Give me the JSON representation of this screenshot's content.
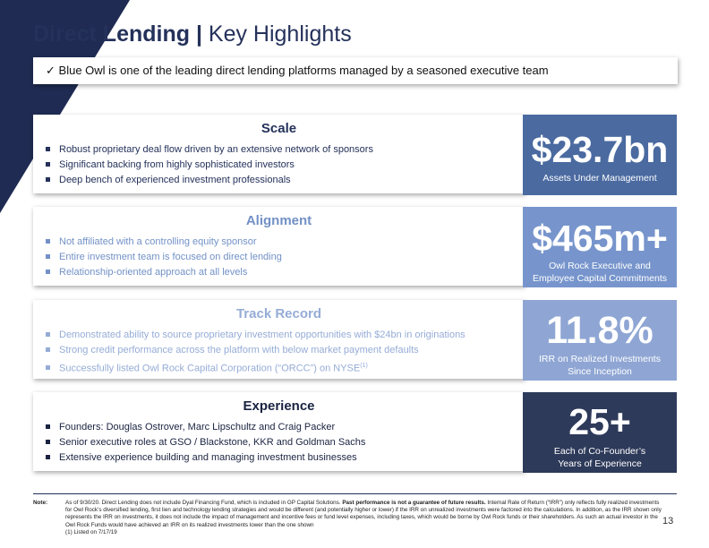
{
  "title": {
    "bold": "Direct Lending |",
    "rest": " Key Highlights"
  },
  "banner": {
    "check": "✓",
    "text": "Blue Owl is one of the leading direct lending platforms managed by a seasoned executive team"
  },
  "sections": [
    {
      "heading": "Scale",
      "color": "#24315a",
      "bullets": [
        "Robust proprietary deal flow driven by an extensive network of sponsors",
        "Significant backing from highly sophisticated investors",
        "Deep bench of experienced investment professionals"
      ],
      "stat": "$23.7bn",
      "caption": [
        "Assets Under Management"
      ],
      "stat_bg": "#4a6aa0"
    },
    {
      "heading": "Alignment",
      "color": "#7291c6",
      "bullets": [
        "Not affiliated with a controlling equity sponsor",
        "Entire investment team is focused on direct lending",
        "Relationship-oriented approach at all levels"
      ],
      "stat": "$465m+",
      "caption": [
        "Owl Rock Executive and",
        "Employee Capital Commitments"
      ],
      "stat_bg": "#7795cc"
    },
    {
      "heading": "Track Record",
      "color": "#95acd6",
      "bullets": [
        "Demonstrated ability to source proprietary investment opportunities with $24bn in originations",
        "Strong credit performance across the platform with below market payment defaults",
        "Successfully listed Owl Rock Capital Corporation (“ORCC”) on NYSE"
      ],
      "footnote_mark": "(1)",
      "stat": "11.8%",
      "caption": [
        "IRR on Realized Investments",
        "Since Inception"
      ],
      "stat_bg": "#8fa6d4"
    },
    {
      "heading": "Experience",
      "color": "#1a2341",
      "bullets": [
        "Founders: Douglas Ostrover, Marc Lipschultz and Craig Packer",
        "Senior executive roles at GSO / Blackstone, KKR and Goldman Sachs",
        "Extensive experience building and managing investment businesses"
      ],
      "stat": "25+",
      "caption": [
        "Each of Co-Founder’s",
        "Years of Experience"
      ],
      "stat_bg": "#2e3a5a"
    }
  ],
  "note": {
    "label": "Note:",
    "text_a": "As of 9/30/20. Direct Lending does not include Dyal Financing Fund, which is included in GP Capital Solutions. ",
    "text_b": "Past performance is not a guarantee of future results.",
    "text_c": " Internal Rate of Return (“IRR”) only reflects fully realized investments for Owl Rock’s diversified lending, first lien and technology lending strategies and would be different (and potentially higher or lower) if the IRR on unrealized investments were factored into the calculations.  In addition, as the IRR shown only represents the IRR on investments, it does not include the impact of management and incentive fees or fund level expenses, including taxes, which would be borne by Owl Rock funds or their shareholders. As such an actual investor in the Owl Rock Funds would have achieved an IRR on its realized investments lower than the one shown",
    "footnote": "(1) Listed on 7/17/19"
  },
  "page_number": "13"
}
